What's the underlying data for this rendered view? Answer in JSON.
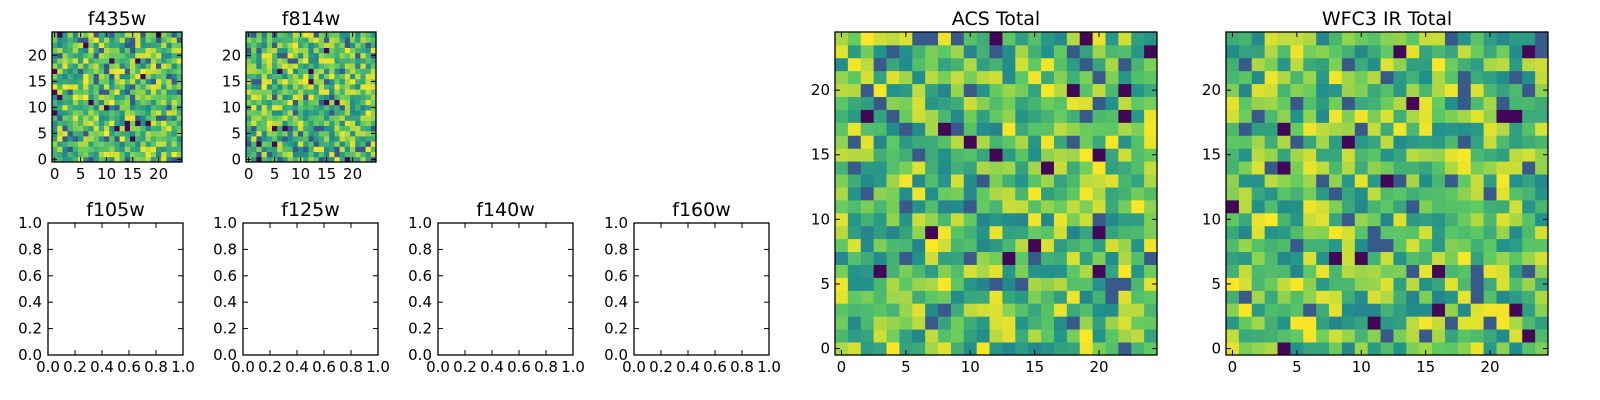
{
  "colormap": [
    "#440154",
    "#3b528b",
    "#21918c",
    "#5ec962",
    "#fde725"
  ],
  "chart_data": [
    {
      "type": "heatmap",
      "title": "f435w",
      "grid_size": 25,
      "colormap": "viridis",
      "xticks": [
        "0",
        "5",
        "10",
        "15",
        "20"
      ],
      "yticks": [
        "0",
        "5",
        "10",
        "15",
        "20"
      ],
      "xlim": [
        0,
        25
      ],
      "ylim": [
        0,
        25
      ],
      "seed": 101
    },
    {
      "type": "heatmap",
      "title": "f814w",
      "grid_size": 25,
      "colormap": "viridis",
      "xticks": [
        "0",
        "5",
        "10",
        "15",
        "20"
      ],
      "yticks": [
        "0",
        "5",
        "10",
        "15",
        "20"
      ],
      "xlim": [
        0,
        25
      ],
      "ylim": [
        0,
        25
      ],
      "seed": 202
    },
    {
      "type": "scatter",
      "title": "f105w",
      "xlim": [
        0,
        1
      ],
      "ylim": [
        0,
        1
      ],
      "points": [],
      "xticks": [
        "0.0",
        "0.2",
        "0.4",
        "0.6",
        "0.8",
        "1.0"
      ],
      "yticks": [
        "0.0",
        "0.2",
        "0.4",
        "0.6",
        "0.8",
        "1.0"
      ]
    },
    {
      "type": "scatter",
      "title": "f125w",
      "xlim": [
        0,
        1
      ],
      "ylim": [
        0,
        1
      ],
      "points": [],
      "xticks": [
        "0.0",
        "0.2",
        "0.4",
        "0.6",
        "0.8",
        "1.0"
      ],
      "yticks": [
        "0.0",
        "0.2",
        "0.4",
        "0.6",
        "0.8",
        "1.0"
      ]
    },
    {
      "type": "scatter",
      "title": "f140w",
      "xlim": [
        0,
        1
      ],
      "ylim": [
        0,
        1
      ],
      "points": [],
      "xticks": [
        "0.0",
        "0.2",
        "0.4",
        "0.6",
        "0.8",
        "1.0"
      ],
      "yticks": [
        "0.0",
        "0.2",
        "0.4",
        "0.6",
        "0.8",
        "1.0"
      ]
    },
    {
      "type": "scatter",
      "title": "f160w",
      "xlim": [
        0,
        1
      ],
      "ylim": [
        0,
        1
      ],
      "points": [],
      "xticks": [
        "0.0",
        "0.2",
        "0.4",
        "0.6",
        "0.8",
        "1.0"
      ],
      "yticks": [
        "0.0",
        "0.2",
        "0.4",
        "0.6",
        "0.8",
        "1.0"
      ]
    },
    {
      "type": "heatmap",
      "title": "ACS Total",
      "grid_size": 25,
      "colormap": "viridis",
      "xticks": [
        "0",
        "5",
        "10",
        "15",
        "20"
      ],
      "yticks": [
        "0",
        "5",
        "10",
        "15",
        "20"
      ],
      "xlim": [
        0,
        25
      ],
      "ylim": [
        0,
        25
      ],
      "seed": 303
    },
    {
      "type": "heatmap",
      "title": "WFC3 IR Total",
      "grid_size": 25,
      "colormap": "viridis",
      "xticks": [
        "0",
        "5",
        "10",
        "15",
        "20"
      ],
      "yticks": [
        "0",
        "5",
        "10",
        "15",
        "20"
      ],
      "xlim": [
        0,
        25
      ],
      "ylim": [
        0,
        25
      ],
      "seed": 404
    }
  ]
}
